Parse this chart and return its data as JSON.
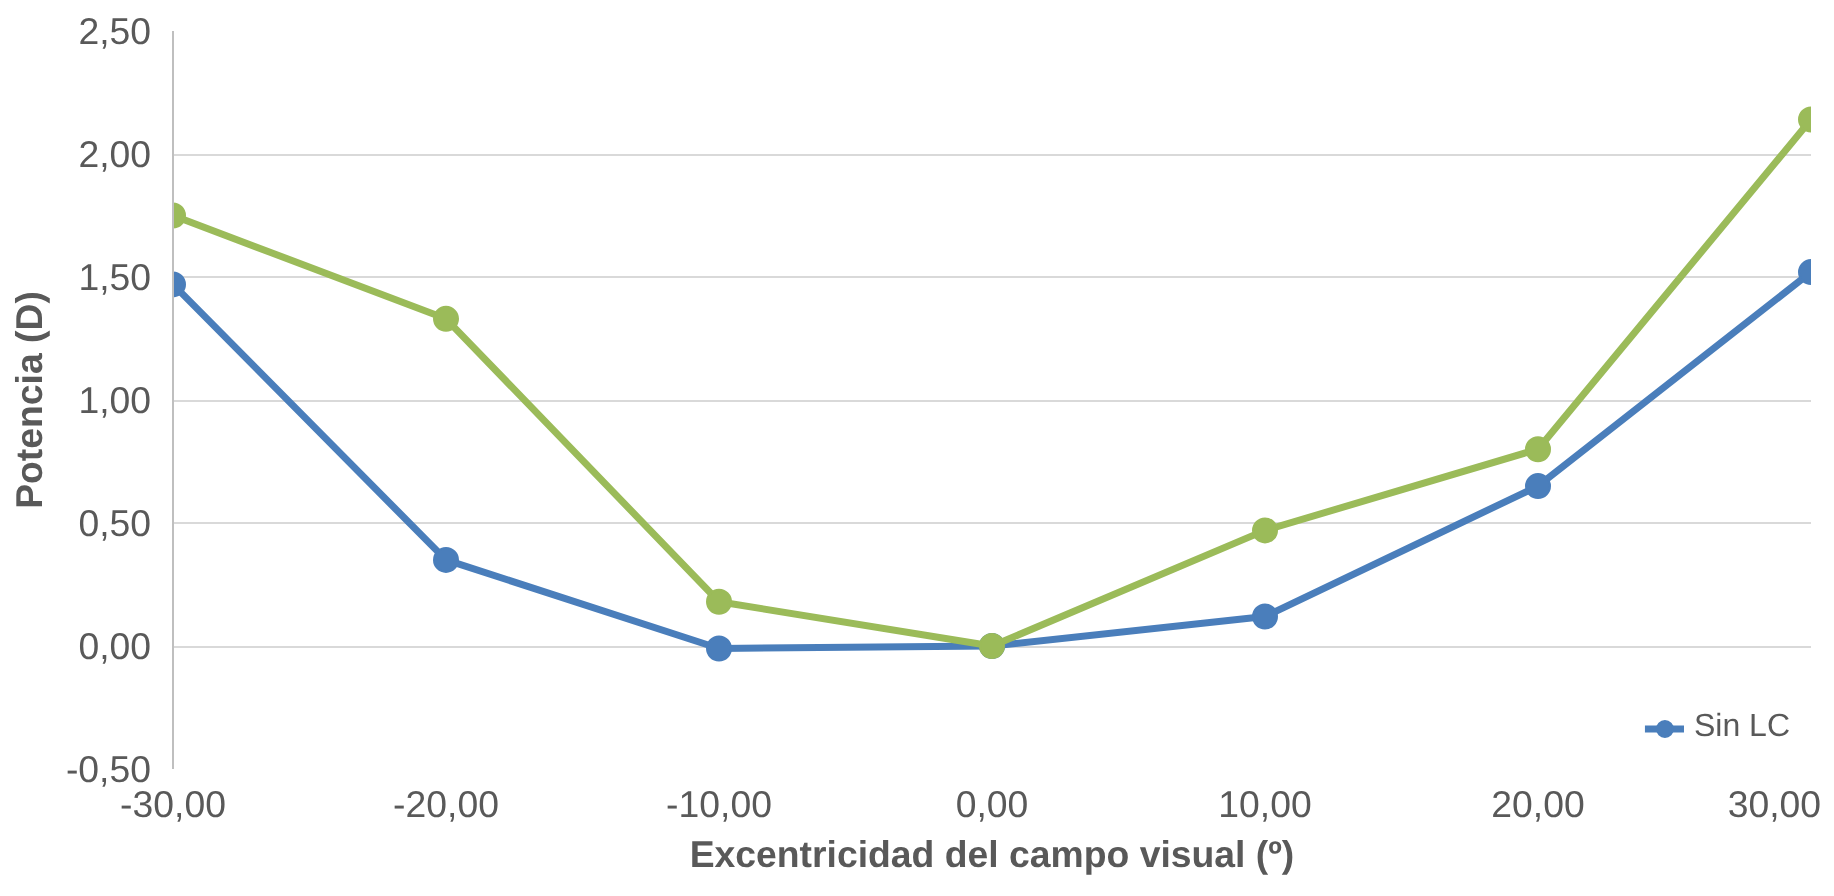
{
  "chart_data": {
    "type": "line",
    "xlabel": "Excentricidad del campo visual (º)",
    "ylabel": "Potencia (D)",
    "x": [
      -30,
      -20,
      -10,
      0,
      10,
      20,
      30
    ],
    "series": [
      {
        "name": "Sin LC",
        "color": "#4a7ebb",
        "values": [
          1.47,
          0.35,
          -0.01,
          0,
          0.12,
          0.65,
          1.52
        ]
      },
      {
        "color": "#9bbb59",
        "values": [
          1.75,
          1.33,
          0.18,
          0,
          0.47,
          0.8,
          2.14
        ]
      }
    ],
    "xlim": [
      -30,
      30
    ],
    "ylim": [
      -0.5,
      2.5
    ],
    "xticks": [
      {
        "value": -30,
        "label": "-30,00"
      },
      {
        "value": -20,
        "label": "-20,00"
      },
      {
        "value": -10,
        "label": "-10,00"
      },
      {
        "value": 0,
        "label": "0,00"
      },
      {
        "value": 10,
        "label": "10,00"
      },
      {
        "value": 20,
        "label": "20,00"
      },
      {
        "value": 30,
        "label": "30,00"
      }
    ],
    "yticks": [
      {
        "value": -0.5,
        "label": "-0,50"
      },
      {
        "value": 0,
        "label": "0,00"
      },
      {
        "value": 0.5,
        "label": "0,50"
      },
      {
        "value": 1,
        "label": "1,00"
      },
      {
        "value": 1.5,
        "label": "1,50"
      },
      {
        "value": 2,
        "label": "2,00"
      },
      {
        "value": 2.5,
        "label": "2,50"
      }
    ],
    "grid": "y",
    "legend": "bottom right",
    "marker": "circle",
    "line_style": "solid"
  }
}
